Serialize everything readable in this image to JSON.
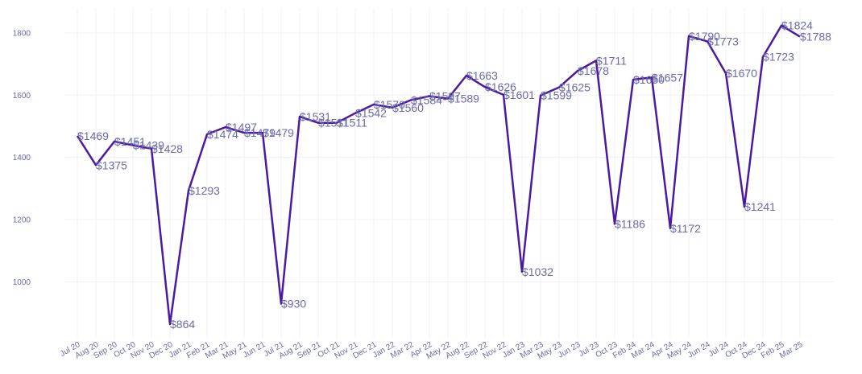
{
  "chart_data": {
    "type": "line",
    "title": "",
    "xlabel": "",
    "ylabel": "",
    "ylim": [
      820,
      1880
    ],
    "yticks": [
      1000,
      1200,
      1400,
      1600,
      1800
    ],
    "value_prefix": "$",
    "line_color": "#4a1aa0",
    "label_color": "#6a6aa8",
    "x": [
      "Jul 20",
      "Aug 20",
      "Sep 20",
      "Oct 20",
      "Nov 20",
      "Dec 20",
      "Jan 21",
      "Feb 21",
      "Mar 21",
      "May 21",
      "Jun 21",
      "Jul 21",
      "Aug 21",
      "Sep 21",
      "Oct 21",
      "Nov 21",
      "Dec 21",
      "Jan 22",
      "Mar 22",
      "Apr 22",
      "May 22",
      "Aug 22",
      "Sep 22",
      "Nov 22",
      "Jan 23",
      "Mar 23",
      "May 23",
      "Jun 23",
      "Jul 23",
      "Oct 23",
      "Feb 24",
      "Mar 24",
      "Apr 24",
      "May 24",
      "Jun 24",
      "Jul 24",
      "Oct 24",
      "Dec 24",
      "Feb 25",
      "Mar 25"
    ],
    "values": [
      1469,
      1375,
      1451,
      1439,
      1428,
      864,
      1293,
      1474,
      1497,
      1479,
      1479,
      930,
      1531,
      1511,
      1511,
      1542,
      1570,
      1560,
      1584,
      1597,
      1589,
      1663,
      1626,
      1601,
      1032,
      1599,
      1625,
      1678,
      1711,
      1186,
      1650,
      1657,
      1172,
      1790,
      1773,
      1670,
      1241,
      1723,
      1824,
      1788
    ],
    "data_labels": [
      "$1469",
      "$1375",
      "$1451",
      "$1439",
      "$1428",
      "$864",
      "$1293",
      "$1474",
      "$1497",
      "$1479",
      "$1479",
      "$930",
      "$1531",
      "$1511",
      "$1511",
      "$1542",
      "$1570",
      "$1560",
      "$1584",
      "$1597",
      "$1589",
      "$1663",
      "$1626",
      "$1601",
      "$1032",
      "$1599",
      "$1625",
      "$1678",
      "$1711",
      "$1186",
      "$1650",
      "$1657",
      "$1172",
      "$1790",
      "$1773",
      "$1670",
      "$1241",
      "$1723",
      "$1824",
      "$1788"
    ]
  }
}
